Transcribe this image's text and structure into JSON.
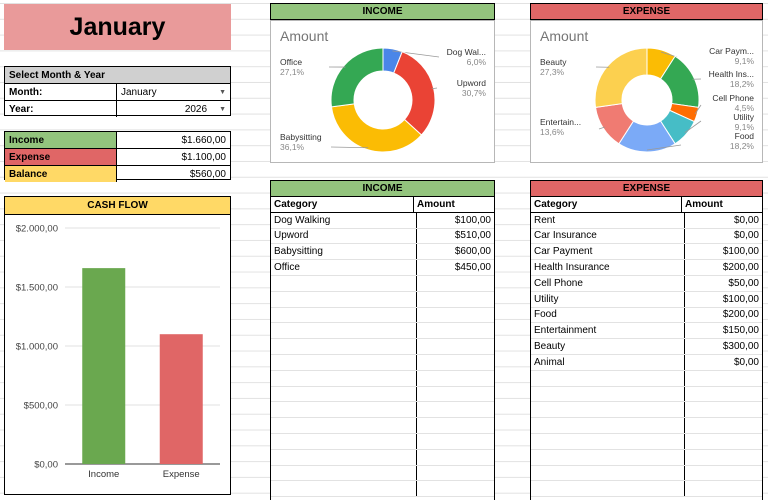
{
  "month_title": "January",
  "select": {
    "header": "Select Month & Year",
    "month_label": "Month:",
    "month_value": "January",
    "year_label": "Year:",
    "year_value": "2026"
  },
  "summary": [
    {
      "label": "Income",
      "value": "$1.660,00",
      "color": "#93c47d"
    },
    {
      "label": "Expense",
      "value": "$1.100,00",
      "color": "#e06666"
    },
    {
      "label": "Balance",
      "value": "$560,00",
      "color": "#ffd966"
    }
  ],
  "cashflow": {
    "title": "CASH FLOW",
    "chart_data": {
      "type": "bar",
      "categories": [
        "Income",
        "Expense"
      ],
      "values": [
        1660,
        1100
      ],
      "colors": [
        "#6aa84f",
        "#e06666"
      ],
      "ylim": [
        0,
        2000
      ],
      "yticks": [
        0,
        500,
        1000,
        1500,
        2000
      ],
      "ytick_labels": [
        "$0,00",
        "$500,00",
        "$1.000,00",
        "$1.500,00",
        "$2.000,00"
      ]
    }
  },
  "income_header": "INCOME",
  "expense_header": "EXPENSE",
  "income_pie": {
    "title": "Amount",
    "chart_data": {
      "type": "pie",
      "labels": [
        "Dog Walking",
        "Upword",
        "Babysitting",
        "Office"
      ],
      "display_labels": [
        "Dog Wal...",
        "Upword",
        "Babysitting",
        "Office"
      ],
      "values": [
        100,
        510,
        600,
        450
      ],
      "percents": [
        "6,0%",
        "30,7%",
        "36,1%",
        "27,1%"
      ],
      "colors": [
        "#4a86e8",
        "#ea4335",
        "#fbbc04",
        "#34a853"
      ]
    }
  },
  "expense_pie": {
    "title": "Amount",
    "chart_data": {
      "type": "pie",
      "labels": [
        "Car Payment",
        "Health Insurance",
        "Cell Phone",
        "Utility",
        "Food",
        "Entertainment",
        "Beauty"
      ],
      "display_labels": [
        "Car Paym...",
        "Health Ins...",
        "Cell Phone",
        "Utility",
        "Food",
        "Entertain...",
        "Beauty"
      ],
      "values": [
        100,
        200,
        50,
        100,
        200,
        150,
        300
      ],
      "percents": [
        "9,1%",
        "18,2%",
        "4,5%",
        "9,1%",
        "18,2%",
        "13,6%",
        "27,3%"
      ],
      "colors": [
        "#fbbc04",
        "#34a853",
        "#ff6d01",
        "#46bdc6",
        "#7baaf7",
        "#f07b72",
        "#fcd04f"
      ]
    }
  },
  "income_table": {
    "col1": "Category",
    "col2": "Amount",
    "rows": [
      {
        "category": "Dog Walking",
        "amount": "$100,00"
      },
      {
        "category": "Upword",
        "amount": "$510,00"
      },
      {
        "category": "Babysitting",
        "amount": "$600,00"
      },
      {
        "category": "Office",
        "amount": "$450,00"
      }
    ]
  },
  "expense_table": {
    "col1": "Category",
    "col2": "Amount",
    "rows": [
      {
        "category": "Rent",
        "amount": "$0,00"
      },
      {
        "category": "Car Insurance",
        "amount": "$0,00"
      },
      {
        "category": "Car Payment",
        "amount": "$100,00"
      },
      {
        "category": "Health Insurance",
        "amount": "$200,00"
      },
      {
        "category": "Cell Phone",
        "amount": "$50,00"
      },
      {
        "category": "Utility",
        "amount": "$100,00"
      },
      {
        "category": "Food",
        "amount": "$200,00"
      },
      {
        "category": "Entertainment",
        "amount": "$150,00"
      },
      {
        "category": "Beauty",
        "amount": "$300,00"
      },
      {
        "category": "Animal",
        "amount": "$0,00"
      }
    ]
  }
}
